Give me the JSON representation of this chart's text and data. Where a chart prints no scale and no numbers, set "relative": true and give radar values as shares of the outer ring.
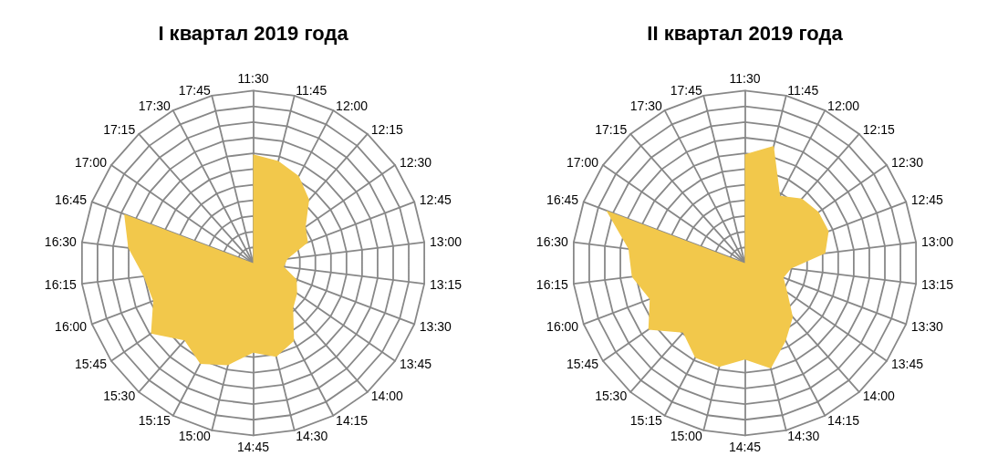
{
  "chart_data": [
    {
      "type": "radar",
      "title": "I квартал 2019 года",
      "relative": true,
      "grid": true,
      "marker": "none",
      "categories": [
        "11:30",
        "11:45",
        "12:00",
        "12:15",
        "12:30",
        "12:45",
        "13:00",
        "13:15",
        "13:30",
        "13:45",
        "14:00",
        "14:15",
        "14:30",
        "14:45",
        "15:00",
        "15:15",
        "15:30",
        "15:45",
        "16:00",
        "16:15",
        "16:30",
        "16:45",
        "17:00",
        "17:15",
        "17:30",
        "17:45"
      ],
      "series": [
        {
          "color": "#f2c84b",
          "type": "area",
          "values": [
            0.63,
            0.61,
            0.57,
            0.49,
            0.37,
            0.34,
            0.2,
            0.18,
            0.27,
            0.31,
            0.35,
            0.51,
            0.56,
            0.52,
            0.61,
            0.66,
            0.6,
            0.72,
            0.62,
            0.64,
            0.73,
            0.8,
            0,
            0,
            0,
            0
          ]
        }
      ]
    },
    {
      "type": "radar",
      "title": "II квартал 2019 года",
      "relative": true,
      "grid": true,
      "marker": "none",
      "categories": [
        "11:30",
        "11:45",
        "12:00",
        "12:15",
        "12:30",
        "12:45",
        "13:00",
        "13:15",
        "13:30",
        "13:45",
        "14:00",
        "14:15",
        "14:30",
        "14:45",
        "15:00",
        "15:15",
        "15:30",
        "15:45",
        "16:00",
        "16:15",
        "16:30",
        "16:45",
        "17:00",
        "17:15",
        "17:30",
        "17:45"
      ],
      "series": [
        {
          "color": "#f2c84b",
          "type": "area",
          "values": [
            0.63,
            0.7,
            0.44,
            0.5,
            0.52,
            0.52,
            0.47,
            0.27,
            0.24,
            0.3,
            0.42,
            0.51,
            0.63,
            0.56,
            0.62,
            0.62,
            0.54,
            0.68,
            0.59,
            0.66,
            0.68,
            0.86,
            0,
            0,
            0.12,
            0
          ]
        }
      ]
    }
  ]
}
